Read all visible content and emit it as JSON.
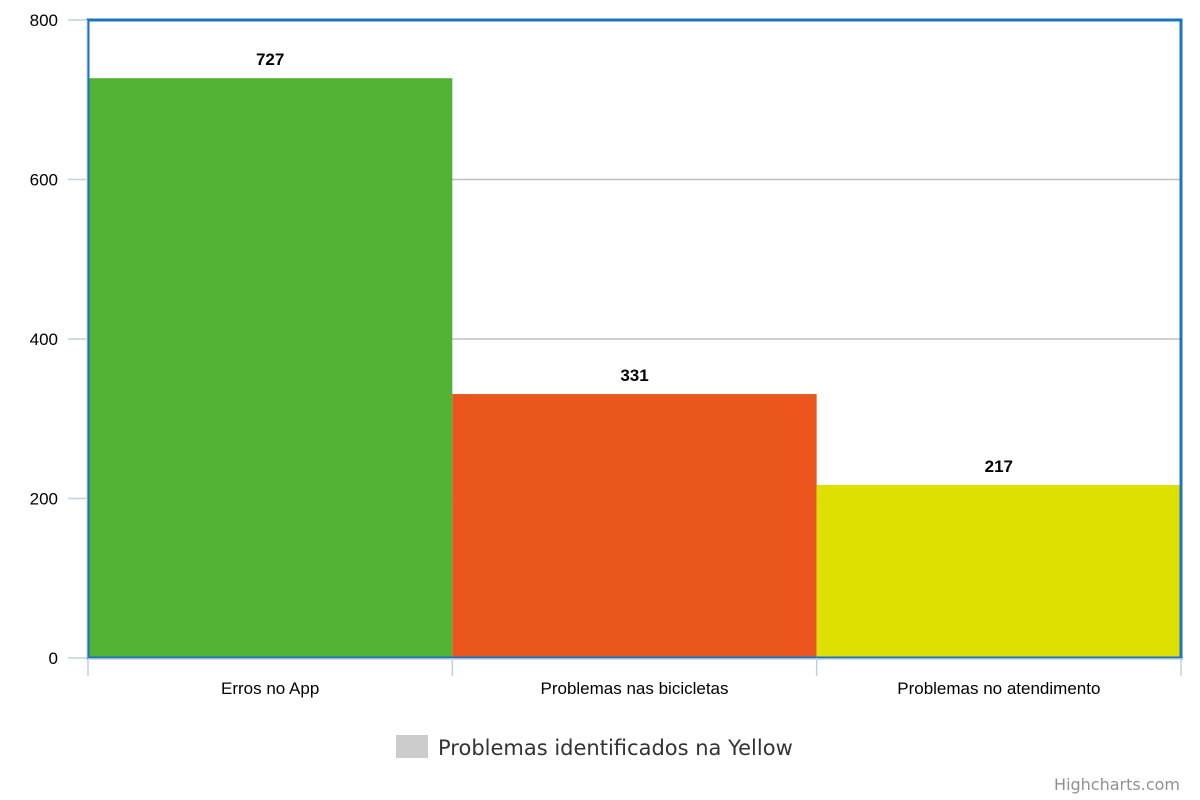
{
  "chart_data": {
    "type": "bar",
    "categories": [
      "Erros no App",
      "Problemas nas bicicletas",
      "Problemas no atendimento"
    ],
    "series": [
      {
        "name": "Problemas identificados na Yellow",
        "values": [
          727,
          331,
          217
        ],
        "colors": [
          "#52b233",
          "#eb561e",
          "#dde000"
        ]
      }
    ],
    "data_labels": [
      "727",
      "331",
      "217"
    ],
    "y_ticks": [
      0,
      200,
      400,
      600,
      800
    ],
    "ylim": [
      0,
      800
    ],
    "grid": true,
    "legend_position": "bottom-center",
    "legend_swatch_color": "#cccccc",
    "plot_border_color": "#1a74c0",
    "gridline_color": "#c0c0c0",
    "axis_color": "#c0d0e0"
  },
  "credits": "Highcharts.com"
}
